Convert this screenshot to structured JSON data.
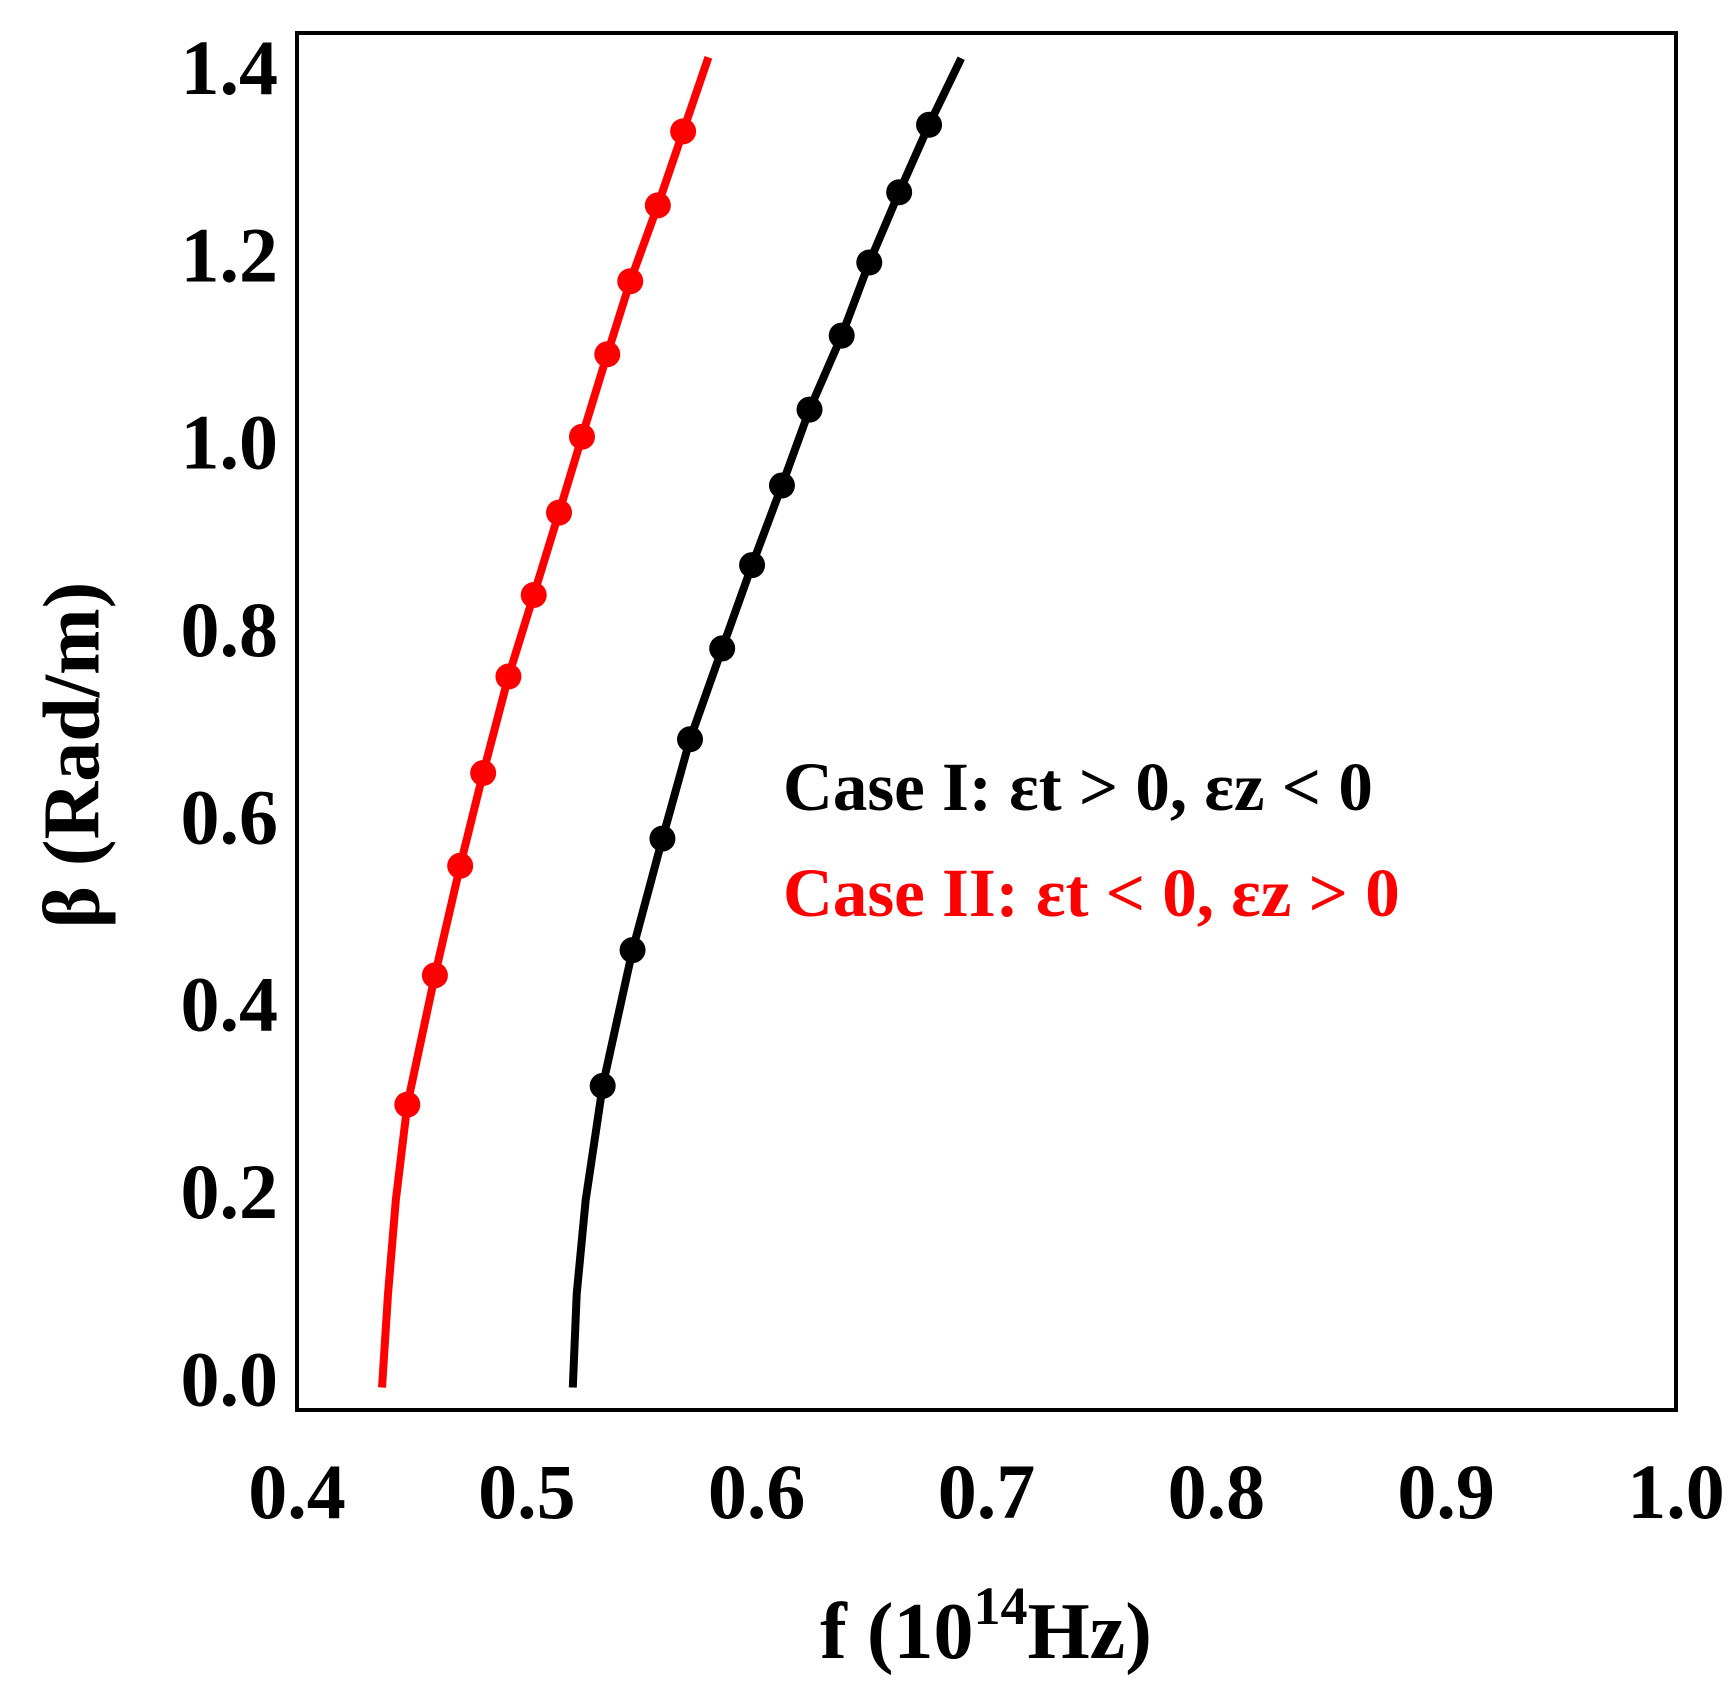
{
  "chart_data": {
    "type": "line",
    "xlabel": [
      "f (10",
      "14",
      "Hz)"
    ],
    "ylabel": "β (Rad/m)",
    "xlim": [
      0.4,
      1.0
    ],
    "ylim": [
      -0.024,
      1.446
    ],
    "xticks": [
      0.4,
      0.5,
      0.6,
      0.7,
      0.8,
      0.9,
      {
        "value": 1.0,
        "label": "1.0"
      }
    ],
    "yticks": [
      {
        "value": 0,
        "label": "0.0"
      },
      0.2,
      0.4,
      0.6,
      0.8,
      {
        "value": 1.0,
        "label": "1.0"
      },
      1.2,
      1.4
    ],
    "series": [
      {
        "name": "Case I: εt > 0, εz < 0",
        "color": "#000000",
        "curve_x": [
          0.52,
          0.5217,
          0.5256,
          0.533,
          0.546,
          0.559,
          0.571,
          0.585,
          0.598,
          0.611,
          0.623,
          0.637,
          0.649,
          0.662,
          0.675,
          0.689
        ],
        "curve_y": [
          0,
          0.1,
          0.2,
          0.322,
          0.467,
          0.586,
          0.692,
          0.789,
          0.878,
          0.963,
          1.044,
          1.123,
          1.201,
          1.276,
          1.348,
          1.419
        ],
        "x": [
          0.533,
          0.546,
          0.559,
          0.571,
          0.585,
          0.598,
          0.611,
          0.623,
          0.637,
          0.649,
          0.662,
          0.675
        ],
        "values": [
          0.322,
          0.467,
          0.586,
          0.692,
          0.789,
          0.878,
          0.963,
          1.044,
          1.123,
          1.201,
          1.276,
          1.348
        ]
      },
      {
        "name": "Case II: εt < 0, εz > 0",
        "color": "#ff0000",
        "curve_x": [
          0.437,
          0.4396,
          0.443,
          0.448,
          0.46,
          0.471,
          0.481,
          0.492,
          0.503,
          0.514,
          0.524,
          0.535,
          0.545,
          0.557,
          0.568,
          0.579
        ],
        "curve_y": [
          0,
          0.1,
          0.2,
          0.302,
          0.44,
          0.557,
          0.656,
          0.759,
          0.846,
          0.934,
          1.015,
          1.103,
          1.181,
          1.262,
          1.341,
          1.42
        ],
        "x": [
          0.448,
          0.46,
          0.471,
          0.481,
          0.492,
          0.503,
          0.514,
          0.524,
          0.535,
          0.545,
          0.557,
          0.568
        ],
        "values": [
          0.302,
          0.44,
          0.557,
          0.656,
          0.759,
          0.846,
          0.934,
          1.015,
          1.103,
          1.181,
          1.262,
          1.341
        ]
      }
    ]
  }
}
